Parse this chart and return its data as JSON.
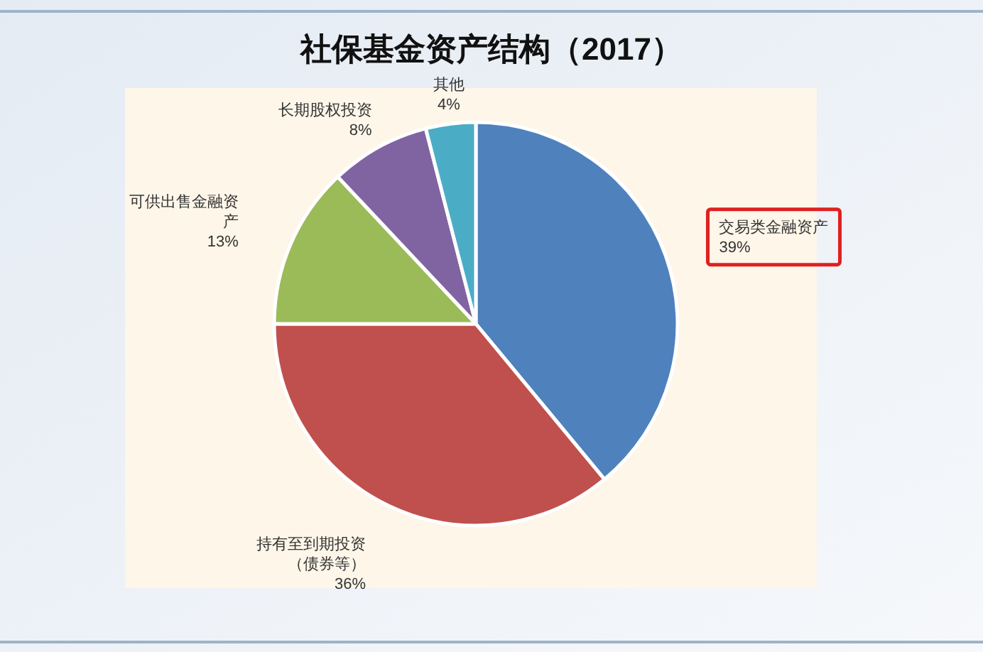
{
  "chart_data": {
    "type": "pie",
    "title": "社保基金资产结构（2017）",
    "categories": [
      "交易类金融资产",
      "持有至到期投资（债券等）",
      "可供出售金融资产",
      "长期股权投资",
      "其他"
    ],
    "values": [
      39,
      36,
      13,
      8,
      4
    ],
    "colors": [
      "#4f81bd",
      "#c0504d",
      "#9bbb59",
      "#8064a2",
      "#4bacc6"
    ],
    "value_labels": [
      "39%",
      "36%",
      "13%",
      "8%",
      "4%"
    ]
  }
}
